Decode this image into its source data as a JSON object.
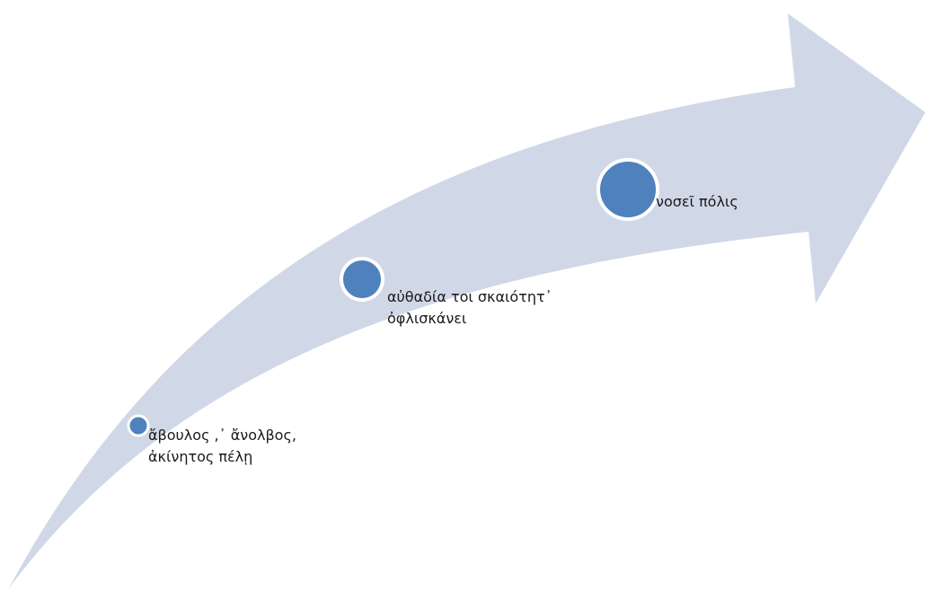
{
  "diagram": {
    "type": "curved-arrow-process",
    "arrow_color": "#d0d8e8",
    "dot_fill": "#4f81bd",
    "dot_ring": "#ffffff",
    "steps": [
      {
        "lines": [
          "ἄβουλος ,᾽ ἄνολβος,",
          "ἀκίνητος πέλῃ"
        ]
      },
      {
        "lines": [
          "αὐθαδία τοι σκαιότητ᾽",
          "ὀφλισκάνει"
        ]
      },
      {
        "lines": [
          "νοσεῖ πόλις"
        ]
      }
    ]
  }
}
